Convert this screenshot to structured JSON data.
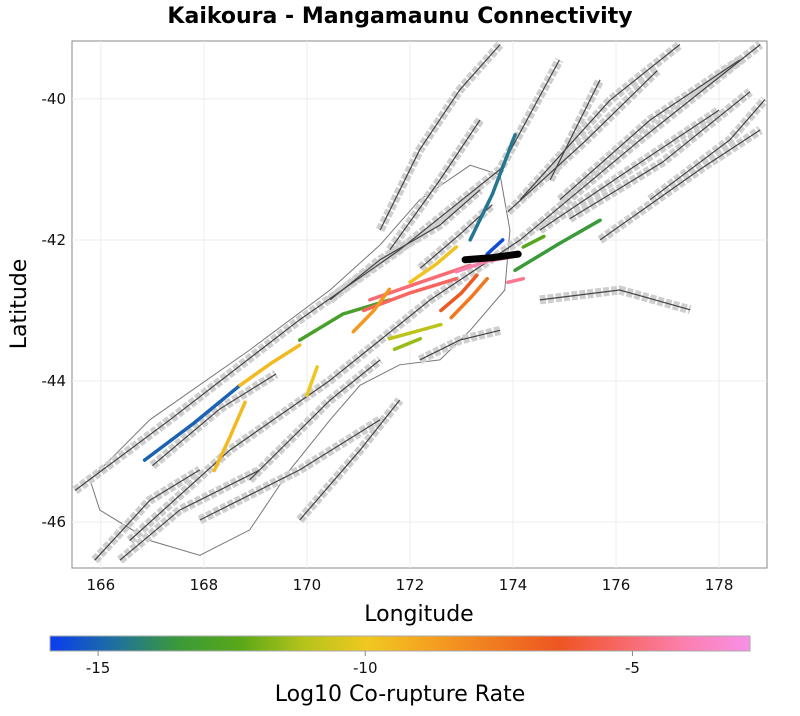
{
  "chart_data": {
    "type": "map",
    "title": "Kaikoura - Mangamaunu Connectivity",
    "xlabel": "Longitude",
    "ylabel": "Latitude",
    "xlim": [
      165.44,
      178.93
    ],
    "ylim": [
      -46.65,
      -39.18
    ],
    "xticks": [
      166,
      168,
      170,
      172,
      174,
      176,
      178
    ],
    "xtick_labels": [
      "166",
      "168",
      "170",
      "172",
      "174",
      "176",
      "178"
    ],
    "yticks": [
      -40,
      -42,
      -44,
      -46
    ],
    "ytick_labels": [
      "-40",
      "-42",
      "-44",
      "-46"
    ],
    "grid": true,
    "colorbar": {
      "label": "Log10 Co-rupture Rate",
      "range": [
        -15.9,
        -2.8
      ],
      "ticks": [
        -15,
        -10,
        -5
      ],
      "tick_labels": [
        "-15",
        "-10",
        "-5"
      ],
      "stops": [
        "#0a3cf0",
        "#1f6fa0",
        "#3a9a3a",
        "#5aa818",
        "#b5c41a",
        "#f0c820",
        "#f5a020",
        "#f07a20",
        "#ee5522",
        "#f86868",
        "#fc80b0",
        "#f890e8"
      ]
    },
    "target_fault": {
      "name": "Mangamaunu",
      "color": "#000000",
      "trace": [
        [
          173.07,
          -42.28
        ],
        [
          173.6,
          -42.25
        ],
        [
          174.1,
          -42.2
        ]
      ]
    },
    "coastline": [
      [
        171.42,
        -42.07
      ],
      [
        172.19,
        -41.43
      ],
      [
        173.17,
        -40.94
      ],
      [
        173.75,
        -41.08
      ],
      [
        173.94,
        -41.86
      ],
      [
        173.84,
        -42.71
      ],
      [
        173.17,
        -43.28
      ],
      [
        172.58,
        -43.7
      ],
      [
        171.8,
        -43.77
      ],
      [
        171.03,
        -44.06
      ],
      [
        170.45,
        -44.55
      ],
      [
        169.67,
        -45.26
      ],
      [
        168.89,
        -46.11
      ],
      [
        167.92,
        -46.47
      ],
      [
        166.95,
        -46.26
      ],
      [
        165.98,
        -45.83
      ],
      [
        165.79,
        -45.4
      ],
      [
        166.95,
        -44.55
      ],
      [
        168.89,
        -43.56
      ],
      [
        170.45,
        -42.71
      ],
      [
        171.42,
        -42.07
      ]
    ],
    "fault_traces": [
      [
        [
          165.5,
          -45.55
        ],
        [
          167.34,
          -44.55
        ],
        [
          169.86,
          -43.13
        ],
        [
          171.8,
          -42.14
        ],
        [
          173.75,
          -41.0
        ],
        [
          174.9,
          -39.45
        ]
      ],
      [
        [
          166.56,
          -46.26
        ],
        [
          168.5,
          -44.98
        ],
        [
          170.45,
          -43.99
        ],
        [
          172.39,
          -42.85
        ],
        [
          174.14,
          -42.0
        ],
        [
          176.47,
          -40.58
        ],
        [
          178.8,
          -39.23
        ]
      ],
      [
        [
          174.91,
          -41.43
        ],
        [
          176.66,
          -40.3
        ],
        [
          178.4,
          -39.45
        ]
      ],
      [
        [
          174.52,
          -41.86
        ],
        [
          176.27,
          -41.0
        ],
        [
          178.0,
          -40.16
        ]
      ],
      [
        [
          175.69,
          -42.0
        ],
        [
          177.63,
          -41.0
        ],
        [
          178.8,
          -40.44
        ]
      ],
      [
        [
          174.14,
          -41.43
        ],
        [
          175.88,
          -40.02
        ],
        [
          177.24,
          -39.23
        ]
      ],
      [
        [
          171.42,
          -41.86
        ],
        [
          172.19,
          -40.72
        ],
        [
          172.97,
          -39.87
        ],
        [
          173.75,
          -39.23
        ]
      ],
      [
        [
          171.61,
          -42.14
        ],
        [
          172.58,
          -41.15
        ],
        [
          173.36,
          -40.3
        ]
      ],
      [
        [
          166.37,
          -46.54
        ],
        [
          167.53,
          -45.83
        ],
        [
          169.09,
          -45.26
        ]
      ],
      [
        [
          167.92,
          -45.97
        ],
        [
          169.86,
          -45.26
        ],
        [
          171.42,
          -44.55
        ]
      ],
      [
        [
          168.89,
          -45.4
        ],
        [
          170.45,
          -44.27
        ],
        [
          171.42,
          -43.7
        ]
      ],
      [
        [
          169.86,
          -45.97
        ],
        [
          171.03,
          -44.98
        ],
        [
          171.8,
          -44.27
        ]
      ],
      [
        [
          174.52,
          -42.85
        ],
        [
          176.07,
          -42.71
        ],
        [
          177.44,
          -42.99
        ]
      ],
      [
        [
          172.19,
          -43.7
        ],
        [
          172.97,
          -43.42
        ],
        [
          173.75,
          -43.28
        ]
      ],
      [
        [
          165.88,
          -46.54
        ],
        [
          166.95,
          -45.69
        ],
        [
          167.92,
          -45.26
        ]
      ],
      [
        [
          170.45,
          -42.85
        ],
        [
          171.42,
          -42.28
        ],
        [
          172.58,
          -41.79
        ],
        [
          173.36,
          -41.29
        ]
      ],
      [
        [
          174.72,
          -41.15
        ],
        [
          175.3,
          -40.3
        ],
        [
          175.69,
          -39.73
        ]
      ],
      [
        [
          176.66,
          -41.43
        ],
        [
          178.21,
          -40.58
        ],
        [
          178.89,
          -40.01
        ]
      ],
      [
        [
          175.1,
          -41.7
        ],
        [
          176.9,
          -40.9
        ],
        [
          178.6,
          -39.9
        ]
      ],
      [
        [
          173.9,
          -41.6
        ],
        [
          175.4,
          -40.6
        ],
        [
          176.8,
          -39.6
        ]
      ],
      [
        [
          167.0,
          -45.2
        ],
        [
          168.3,
          -44.4
        ],
        [
          169.4,
          -43.9
        ]
      ],
      [
        [
          172.2,
          -42.4
        ],
        [
          173.0,
          -41.9
        ],
        [
          173.6,
          -41.5
        ]
      ]
    ],
    "ruptures": [
      {
        "value": -15.0,
        "trace": [
          [
            166.85,
            -45.12
          ],
          [
            167.8,
            -44.6
          ],
          [
            168.7,
            -44.06
          ]
        ]
      },
      {
        "value": -9.5,
        "trace": [
          [
            168.7,
            -44.06
          ],
          [
            169.3,
            -43.75
          ],
          [
            169.86,
            -43.49
          ]
        ]
      },
      {
        "value": -13.0,
        "trace": [
          [
            169.86,
            -43.42
          ],
          [
            170.7,
            -43.05
          ],
          [
            171.61,
            -42.85
          ]
        ]
      },
      {
        "value": -14.5,
        "trace": [
          [
            173.17,
            -42.0
          ],
          [
            173.6,
            -41.35
          ],
          [
            174.04,
            -40.51
          ]
        ]
      },
      {
        "value": -13.5,
        "trace": [
          [
            174.04,
            -42.43
          ],
          [
            174.9,
            -42.05
          ],
          [
            175.69,
            -41.72
          ]
        ]
      },
      {
        "value": -5.0,
        "trace": [
          [
            171.22,
            -42.85
          ],
          [
            172.2,
            -42.6
          ],
          [
            173.17,
            -42.36
          ]
        ]
      },
      {
        "value": -5.3,
        "trace": [
          [
            171.1,
            -43.0
          ],
          [
            172.0,
            -42.75
          ],
          [
            172.9,
            -42.55
          ]
        ]
      },
      {
        "value": -4.0,
        "trace": [
          [
            172.9,
            -42.45
          ],
          [
            173.5,
            -42.3
          ],
          [
            173.9,
            -42.25
          ]
        ]
      },
      {
        "value": -6.5,
        "trace": [
          [
            172.6,
            -43.0
          ],
          [
            173.0,
            -42.75
          ],
          [
            173.3,
            -42.5
          ]
        ]
      },
      {
        "value": -7.5,
        "trace": [
          [
            172.8,
            -43.1
          ],
          [
            173.2,
            -42.8
          ],
          [
            173.5,
            -42.55
          ]
        ]
      },
      {
        "value": -11.0,
        "trace": [
          [
            171.6,
            -43.4
          ],
          [
            172.1,
            -43.3
          ],
          [
            172.6,
            -43.2
          ]
        ]
      },
      {
        "value": -11.5,
        "trace": [
          [
            171.7,
            -43.55
          ],
          [
            172.2,
            -43.4
          ]
        ]
      },
      {
        "value": -9.5,
        "trace": [
          [
            168.2,
            -45.27
          ],
          [
            168.5,
            -44.8
          ],
          [
            168.8,
            -44.3
          ]
        ]
      },
      {
        "value": -10.0,
        "trace": [
          [
            170.2,
            -43.8
          ],
          [
            170.0,
            -44.2
          ]
        ]
      },
      {
        "value": -15.5,
        "trace": [
          [
            173.8,
            -42.0
          ],
          [
            173.5,
            -42.2
          ]
        ]
      },
      {
        "value": -8.5,
        "trace": [
          [
            170.9,
            -43.3
          ],
          [
            171.3,
            -43.0
          ],
          [
            171.6,
            -42.7
          ]
        ]
      },
      {
        "value": -9.8,
        "trace": [
          [
            172.0,
            -42.6
          ],
          [
            172.5,
            -42.35
          ],
          [
            172.9,
            -42.1
          ]
        ]
      },
      {
        "value": -12.5,
        "trace": [
          [
            174.2,
            -42.1
          ],
          [
            174.6,
            -41.95
          ]
        ]
      },
      {
        "value": -4.5,
        "trace": [
          [
            173.9,
            -42.6
          ],
          [
            174.2,
            -42.55
          ]
        ]
      }
    ]
  }
}
